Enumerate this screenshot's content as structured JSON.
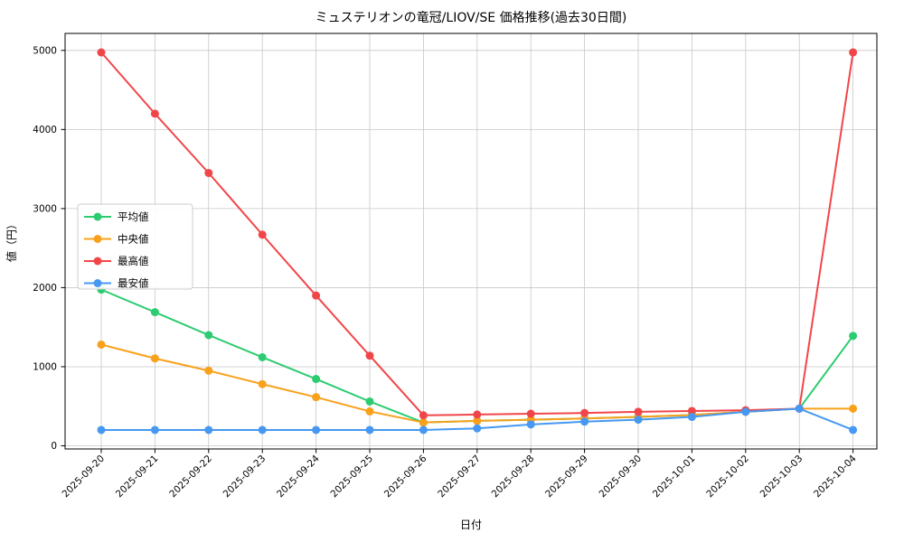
{
  "page": {
    "background": "#ffffff",
    "grid_color": "#c7c7c7",
    "frame_color": "#000000",
    "text_color": "#000000",
    "legend_border_color": "#cccccc",
    "legend_background": "#ffffff"
  },
  "chart_data": {
    "type": "line",
    "title": "ミュステリオンの竜冠/LIOV/SE 価格推移(過去30日間)",
    "xlabel": "日付",
    "ylabel": "値（円）",
    "grid": true,
    "legend_position": "left-center",
    "ylim": [
      -40,
      5215
    ],
    "yticks": [
      0,
      1000,
      2000,
      3000,
      4000,
      5000
    ],
    "x": [
      "2025-09-20",
      "2025-09-21",
      "2025-09-22",
      "2025-09-23",
      "2025-09-24",
      "2025-09-25",
      "2025-09-26",
      "2025-09-27",
      "2025-09-28",
      "2025-09-29",
      "2025-09-30",
      "2025-10-01",
      "2025-10-02",
      "2025-10-03",
      "2025-10-04"
    ],
    "series": [
      {
        "key": "average",
        "name": "平均値",
        "color": "#2ecc71",
        "values": [
          1975,
          1690,
          1400,
          1120,
          845,
          560,
          295,
          315,
          330,
          345,
          365,
          390,
          430,
          470,
          1390
        ]
      },
      {
        "key": "median",
        "name": "中央値",
        "color": "#f9a11b",
        "values": [
          1280,
          1105,
          950,
          780,
          615,
          435,
          295,
          315,
          330,
          345,
          365,
          390,
          430,
          470,
          470
        ]
      },
      {
        "key": "max",
        "name": "最高値",
        "color": "#f14649",
        "values": [
          4975,
          4200,
          3450,
          2670,
          1900,
          1140,
          385,
          395,
          405,
          415,
          430,
          440,
          450,
          470,
          4975
        ]
      },
      {
        "key": "min",
        "name": "最安値",
        "color": "#4698f2",
        "values": [
          200,
          200,
          200,
          200,
          200,
          200,
          200,
          220,
          270,
          305,
          330,
          365,
          430,
          470,
          200
        ]
      }
    ]
  }
}
